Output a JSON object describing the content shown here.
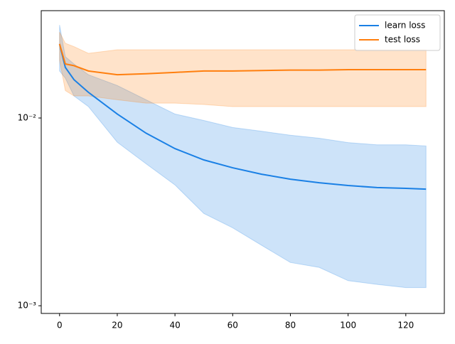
{
  "chart_data": {
    "type": "line",
    "log_y": true,
    "x": [
      0,
      2,
      5,
      10,
      20,
      30,
      40,
      50,
      60,
      70,
      80,
      90,
      100,
      110,
      120,
      127
    ],
    "series": [
      {
        "name": "learn loss",
        "color": "#1a80e5",
        "values": [
          0.0248,
          0.0186,
          0.016,
          0.0137,
          0.0105,
          0.0083,
          0.00687,
          0.00598,
          0.00543,
          0.00502,
          0.00472,
          0.00452,
          0.00437,
          0.00426,
          0.00422,
          0.00418
        ],
        "lower": [
          0.0178,
          0.0163,
          0.0131,
          0.0115,
          0.00743,
          0.0057,
          0.0044,
          0.0031,
          0.0026,
          0.0021,
          0.0017,
          0.0016,
          0.00136,
          0.0013,
          0.00125,
          0.00125
        ],
        "upper": [
          0.0313,
          0.0212,
          0.0194,
          0.017,
          0.0149,
          0.0125,
          0.0105,
          0.0097,
          0.0089,
          0.0085,
          0.0081,
          0.0078,
          0.0074,
          0.0072,
          0.0072,
          0.0071
        ]
      },
      {
        "name": "test loss",
        "color": "#ff7f0e",
        "values": [
          0.0248,
          0.0194,
          0.019,
          0.0178,
          0.017,
          0.0172,
          0.0175,
          0.0178,
          0.0178,
          0.0179,
          0.018,
          0.018,
          0.0181,
          0.0181,
          0.0181,
          0.0181
        ],
        "lower": [
          0.0203,
          0.014,
          0.0131,
          0.0131,
          0.0125,
          0.012,
          0.012,
          0.0118,
          0.0115,
          0.0115,
          0.0115,
          0.0115,
          0.0115,
          0.0115,
          0.0115,
          0.0115
        ],
        "upper": [
          0.0287,
          0.025,
          0.024,
          0.0221,
          0.0231,
          0.0231,
          0.0231,
          0.0231,
          0.0231,
          0.0231,
          0.0231,
          0.0231,
          0.0231,
          0.0231,
          0.0231,
          0.0231
        ]
      }
    ],
    "xlim": [
      -6.35,
      133.35
    ],
    "xticks": [
      0,
      20,
      40,
      60,
      80,
      100,
      120
    ],
    "ylim": [
      0.00091,
      0.0373
    ],
    "yticks": [
      {
        "value": 0.001,
        "label": "10⁻³"
      },
      {
        "value": 0.01,
        "label": "10⁻²"
      }
    ],
    "legend": "upper right"
  }
}
